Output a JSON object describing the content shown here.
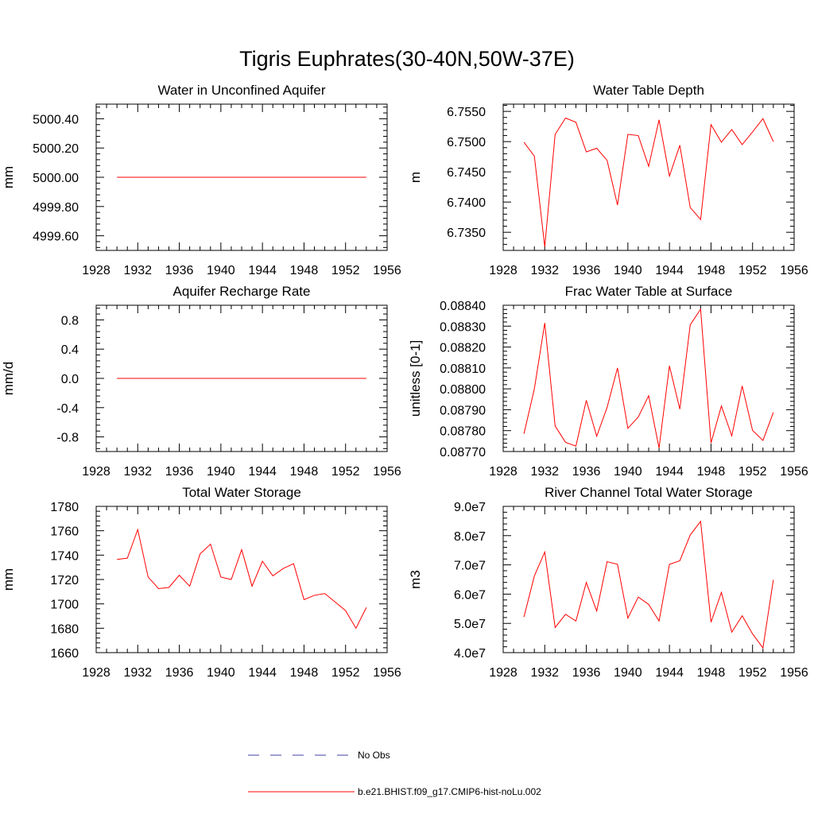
{
  "figure": {
    "title": "Tigris Euphrates(30-40N,50W-37E)",
    "line_color": "#ff0000",
    "obs_color": "#3f3fa0"
  },
  "chart_data": [
    {
      "type": "line",
      "title": "Water in Unconfined Aquifer",
      "xlabel": "",
      "ylabel": "mm",
      "xlim": [
        1928,
        1956
      ],
      "ylim": [
        4999.5,
        5000.5
      ],
      "xticks": [
        1928,
        1932,
        1936,
        1940,
        1944,
        1948,
        1952,
        1956
      ],
      "yticks": [
        4999.6,
        4999.8,
        5000.0,
        5000.2,
        5000.4
      ],
      "ytick_labels": [
        "4999.60",
        "4999.80",
        "5000.00",
        "5000.20",
        "5000.40"
      ],
      "x": [
        1930,
        1931,
        1932,
        1933,
        1934,
        1935,
        1936,
        1937,
        1938,
        1939,
        1940,
        1941,
        1942,
        1943,
        1944,
        1945,
        1946,
        1947,
        1948,
        1949,
        1950,
        1951,
        1952,
        1953,
        1954
      ],
      "series": [
        {
          "values": [
            5000,
            5000,
            5000,
            5000,
            5000,
            5000,
            5000,
            5000,
            5000,
            5000,
            5000,
            5000,
            5000,
            5000,
            5000,
            5000,
            5000,
            5000,
            5000,
            5000,
            5000,
            5000,
            5000,
            5000,
            5000
          ]
        }
      ]
    },
    {
      "type": "line",
      "title": "Water Table Depth",
      "xlabel": "",
      "ylabel": "m",
      "xlim": [
        1928,
        1956
      ],
      "ylim": [
        6.732,
        6.7562
      ],
      "xticks": [
        1928,
        1932,
        1936,
        1940,
        1944,
        1948,
        1952,
        1956
      ],
      "yticks": [
        6.735,
        6.74,
        6.745,
        6.75,
        6.755
      ],
      "ytick_labels": [
        "6.7350",
        "6.7400",
        "6.7450",
        "6.7500",
        "6.7550"
      ],
      "x": [
        1930,
        1931,
        1932,
        1933,
        1934,
        1935,
        1936,
        1937,
        1938,
        1939,
        1940,
        1941,
        1942,
        1943,
        1944,
        1945,
        1946,
        1947,
        1948,
        1949,
        1950,
        1951,
        1952,
        1953,
        1954
      ],
      "series": [
        {
          "values": [
            6.7499,
            6.7476,
            6.7326,
            6.7512,
            6.7539,
            6.7532,
            6.7483,
            6.7489,
            6.7469,
            6.7395,
            6.7512,
            6.751,
            6.7459,
            6.7536,
            6.7443,
            6.7494,
            6.7391,
            6.7371,
            6.7528,
            6.7499,
            6.752,
            6.7495,
            6.7516,
            6.7538,
            6.75
          ]
        }
      ]
    },
    {
      "type": "line",
      "title": "Aquifer Recharge Rate",
      "xlabel": "",
      "ylabel": "mm/d",
      "xlim": [
        1928,
        1956
      ],
      "ylim": [
        -1.0,
        1.0
      ],
      "xticks": [
        1928,
        1932,
        1936,
        1940,
        1944,
        1948,
        1952,
        1956
      ],
      "yticks": [
        -0.8,
        -0.4,
        0.0,
        0.4,
        0.8
      ],
      "ytick_labels": [
        "-0.8",
        "-0.4",
        "0.0",
        "0.4",
        "0.8"
      ],
      "x": [
        1930,
        1931,
        1932,
        1933,
        1934,
        1935,
        1936,
        1937,
        1938,
        1939,
        1940,
        1941,
        1942,
        1943,
        1944,
        1945,
        1946,
        1947,
        1948,
        1949,
        1950,
        1951,
        1952,
        1953,
        1954
      ],
      "series": [
        {
          "values": [
            0,
            0,
            0,
            0,
            0,
            0,
            0,
            0,
            0,
            0,
            0,
            0,
            0,
            0,
            0,
            0,
            0,
            0,
            0,
            0,
            0,
            0,
            0,
            0,
            0
          ]
        }
      ]
    },
    {
      "type": "line",
      "title": "Frac Water Table at Surface",
      "xlabel": "",
      "ylabel": "unitless [0-1]",
      "xlim": [
        1928,
        1956
      ],
      "ylim": [
        0.0877,
        0.0884
      ],
      "xticks": [
        1928,
        1932,
        1936,
        1940,
        1944,
        1948,
        1952,
        1956
      ],
      "yticks": [
        0.0877,
        0.0878,
        0.0879,
        0.088,
        0.0881,
        0.0882,
        0.0883,
        0.0884
      ],
      "ytick_labels": [
        "0.08770",
        "0.08780",
        "0.08790",
        "0.08800",
        "0.08810",
        "0.08820",
        "0.08830",
        "0.08840"
      ],
      "x": [
        1930,
        1931,
        1932,
        1933,
        1934,
        1935,
        1936,
        1937,
        1938,
        1939,
        1940,
        1941,
        1942,
        1943,
        1944,
        1945,
        1946,
        1947,
        1948,
        1949,
        1950,
        1951,
        1952,
        1953,
        1954
      ],
      "series": [
        {
          "values": [
            0.087785,
            0.088,
            0.088315,
            0.087822,
            0.087744,
            0.087726,
            0.087945,
            0.087773,
            0.087911,
            0.0881,
            0.087811,
            0.087865,
            0.087967,
            0.087717,
            0.08811,
            0.087903,
            0.088306,
            0.088381,
            0.087741,
            0.087918,
            0.087775,
            0.088014,
            0.087801,
            0.087753,
            0.087887
          ]
        }
      ]
    },
    {
      "type": "line",
      "title": "Total Water Storage",
      "xlabel": "",
      "ylabel": "mm",
      "xlim": [
        1928,
        1956
      ],
      "ylim": [
        1660,
        1780
      ],
      "xticks": [
        1928,
        1932,
        1936,
        1940,
        1944,
        1948,
        1952,
        1956
      ],
      "yticks": [
        1660,
        1680,
        1700,
        1720,
        1740,
        1760,
        1780
      ],
      "ytick_labels": [
        "1660",
        "1680",
        "1700",
        "1720",
        "1740",
        "1760",
        "1780"
      ],
      "x": [
        1930,
        1931,
        1932,
        1933,
        1934,
        1935,
        1936,
        1937,
        1938,
        1939,
        1940,
        1941,
        1942,
        1943,
        1944,
        1945,
        1946,
        1947,
        1948,
        1949,
        1950,
        1951,
        1952,
        1953,
        1954
      ],
      "series": [
        {
          "values": [
            1736.5,
            1737.5,
            1761,
            1722,
            1712.5,
            1713.5,
            1723.5,
            1714.5,
            1741,
            1749,
            1722,
            1720,
            1744.5,
            1714.5,
            1735,
            1723,
            1729,
            1733,
            1703.5,
            1707,
            1708.5,
            1701.5,
            1694.5,
            1680,
            1697
          ]
        }
      ]
    },
    {
      "type": "line",
      "title": "River Channel Total Water Storage",
      "xlabel": "",
      "ylabel": "m3",
      "xlim": [
        1928,
        1956
      ],
      "ylim": [
        40000000,
        90000000
      ],
      "xticks": [
        1928,
        1932,
        1936,
        1940,
        1944,
        1948,
        1952,
        1956
      ],
      "yticks": [
        40000000,
        50000000,
        60000000,
        70000000,
        80000000,
        90000000
      ],
      "ytick_labels": [
        "4.0e7",
        "5.0e7",
        "6.0e7",
        "7.0e7",
        "8.0e7",
        "9.0e7"
      ],
      "x": [
        1930,
        1931,
        1932,
        1933,
        1934,
        1935,
        1936,
        1937,
        1938,
        1939,
        1940,
        1941,
        1942,
        1943,
        1944,
        1945,
        1946,
        1947,
        1948,
        1949,
        1950,
        1951,
        1952,
        1953,
        1954
      ],
      "series": [
        {
          "values": [
            52200000,
            66200000,
            74400000,
            48600000,
            53100000,
            50800000,
            64000000,
            54200000,
            71100000,
            70200000,
            51800000,
            59000000,
            56500000,
            50800000,
            70200000,
            71400000,
            80200000,
            84900000,
            50400000,
            60600000,
            47000000,
            52600000,
            46400000,
            41600000,
            64900000
          ]
        }
      ]
    }
  ],
  "legend": {
    "placement": "bottom-center",
    "items": [
      {
        "label": "No Obs",
        "style": "dashed",
        "color": "#3f3fa0"
      },
      {
        "label": "b.e21.BHIST.f09_g17.CMIP6-hist-noLu.002",
        "style": "solid",
        "color": "#ff0000"
      }
    ]
  }
}
